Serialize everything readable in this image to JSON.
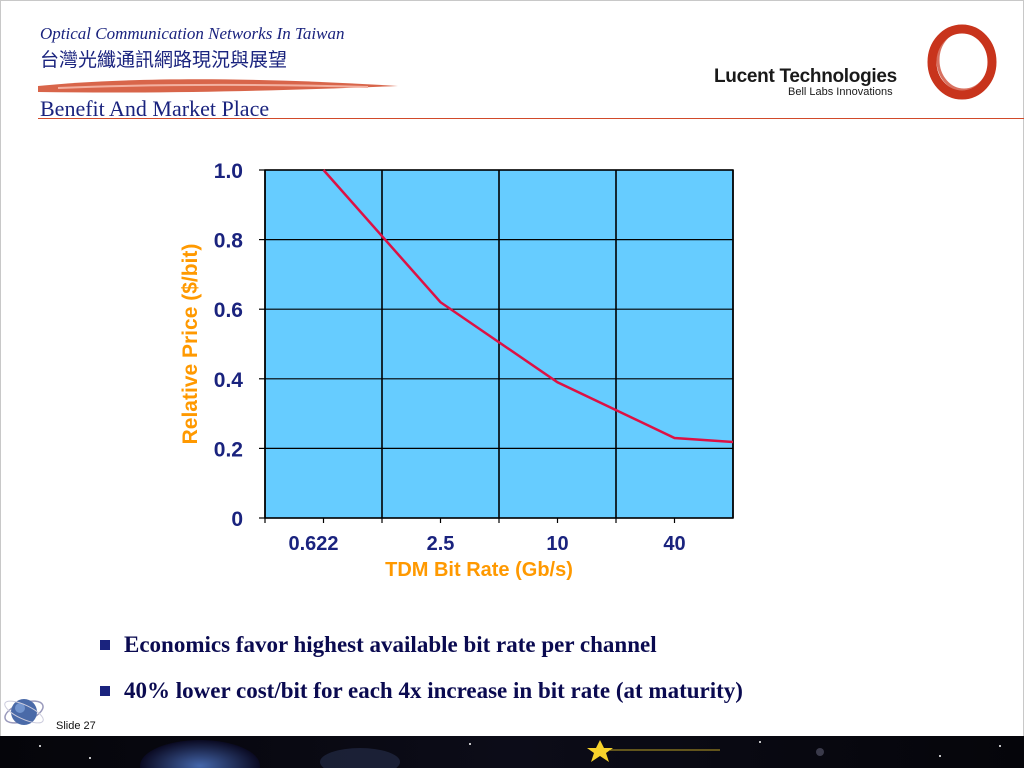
{
  "header": {
    "title": "Optical Communication Networks In Taiwan",
    "subtitle": "台灣光纖通訊網路現況與展望",
    "section": "Benefit And Market Place"
  },
  "logo": {
    "company": "Lucent Technologies",
    "tagline": "Bell Labs Innovations"
  },
  "colors": {
    "accent": "#d14a2a",
    "navy": "#1a237e",
    "plot_bg": "#66ccff",
    "series": "#dd1144",
    "axis_title": "#ff9900"
  },
  "chart_data": {
    "type": "line",
    "categories": [
      "0.622",
      "2.5",
      "10",
      "40"
    ],
    "series": [
      {
        "values": [
          1.0,
          0.62,
          0.39,
          0.23
        ]
      }
    ],
    "xlabel": "TDM Bit Rate (Gb/s)",
    "ylabel": "Relative Price ($/bit)",
    "ylim": [
      0,
      1.0
    ],
    "yticks": [
      "0",
      "0.2",
      "0.4",
      "0.6",
      "0.8",
      "1.0"
    ],
    "grid": true
  },
  "bullets": [
    "Economics favor highest available bit rate per channel",
    "40% lower cost/bit for each 4x increase in bit rate (at maturity)"
  ],
  "slide_label": "Slide 27"
}
